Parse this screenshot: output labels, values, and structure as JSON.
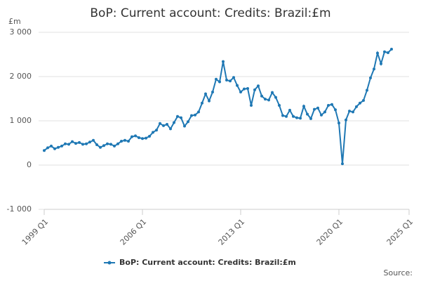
{
  "chart_data": {
    "type": "line",
    "title": "BoP: Current account: Credits: Brazil:£m",
    "y_label": "£m",
    "source": "Source:",
    "x": [
      1999,
      1999.25,
      1999.5,
      1999.75,
      2000,
      2000.25,
      2000.5,
      2000.75,
      2001,
      2001.25,
      2001.5,
      2001.75,
      2002,
      2002.25,
      2002.5,
      2002.75,
      2003,
      2003.25,
      2003.5,
      2003.75,
      2004,
      2004.25,
      2004.5,
      2004.75,
      2005,
      2005.25,
      2005.5,
      2005.75,
      2006,
      2006.25,
      2006.5,
      2006.75,
      2007,
      2007.25,
      2007.5,
      2007.75,
      2008,
      2008.25,
      2008.5,
      2008.75,
      2009,
      2009.25,
      2009.5,
      2009.75,
      2010,
      2010.25,
      2010.5,
      2010.75,
      2011,
      2011.25,
      2011.5,
      2011.75,
      2012,
      2012.25,
      2012.5,
      2012.75,
      2013,
      2013.25,
      2013.5,
      2013.75,
      2014,
      2014.25,
      2014.5,
      2014.75,
      2015,
      2015.25,
      2015.5,
      2015.75,
      2016,
      2016.25,
      2016.5,
      2016.75,
      2017,
      2017.25,
      2017.5,
      2017.75,
      2018,
      2018.25,
      2018.5,
      2018.75,
      2019,
      2019.25,
      2019.5,
      2019.75,
      2020,
      2020.25,
      2020.5,
      2020.75,
      2021,
      2021.25,
      2021.5,
      2021.75,
      2022,
      2022.25,
      2022.5,
      2022.75,
      2023,
      2023.25,
      2023.5,
      2023.75
    ],
    "series": [
      {
        "name": "BoP: Current account: Credits: Brazil:£m",
        "color": "#1f78b4",
        "values": [
          330,
          390,
          430,
          370,
          400,
          430,
          480,
          470,
          530,
          490,
          510,
          470,
          480,
          520,
          560,
          460,
          400,
          440,
          480,
          470,
          430,
          480,
          540,
          560,
          540,
          640,
          660,
          620,
          600,
          610,
          650,
          740,
          790,
          940,
          890,
          920,
          820,
          960,
          1100,
          1070,
          880,
          980,
          1120,
          1130,
          1200,
          1400,
          1610,
          1450,
          1650,
          1940,
          1880,
          2340,
          1920,
          1900,
          1980,
          1800,
          1650,
          1720,
          1730,
          1350,
          1700,
          1790,
          1560,
          1490,
          1470,
          1640,
          1530,
          1350,
          1120,
          1100,
          1240,
          1100,
          1070,
          1060,
          1330,
          1150,
          1050,
          1260,
          1290,
          1130,
          1200,
          1350,
          1370,
          1250,
          950,
          30,
          1020,
          1220,
          1200,
          1320,
          1400,
          1460,
          1690,
          1970,
          2170,
          2530,
          2290,
          2560,
          2540,
          2620
        ]
      }
    ],
    "xlim": [
      1999,
      2025
    ],
    "xticks": [
      {
        "value": 1999,
        "label": "1999 Q1"
      },
      {
        "value": 2006,
        "label": "2006 Q1"
      },
      {
        "value": 2013,
        "label": "2013 Q1"
      },
      {
        "value": 2020,
        "label": "2020 Q1"
      },
      {
        "value": 2025,
        "label": "2025 Q1"
      }
    ],
    "ylim": [
      -1000,
      3000
    ],
    "yticks": [
      {
        "value": -1000,
        "label": "-1 000"
      },
      0,
      {
        "value": 1000,
        "label": "1 000"
      },
      {
        "value": 2000,
        "label": "2 000"
      },
      {
        "value": 3000,
        "label": "3 000"
      }
    ],
    "grid": true,
    "legend": "bottom"
  }
}
